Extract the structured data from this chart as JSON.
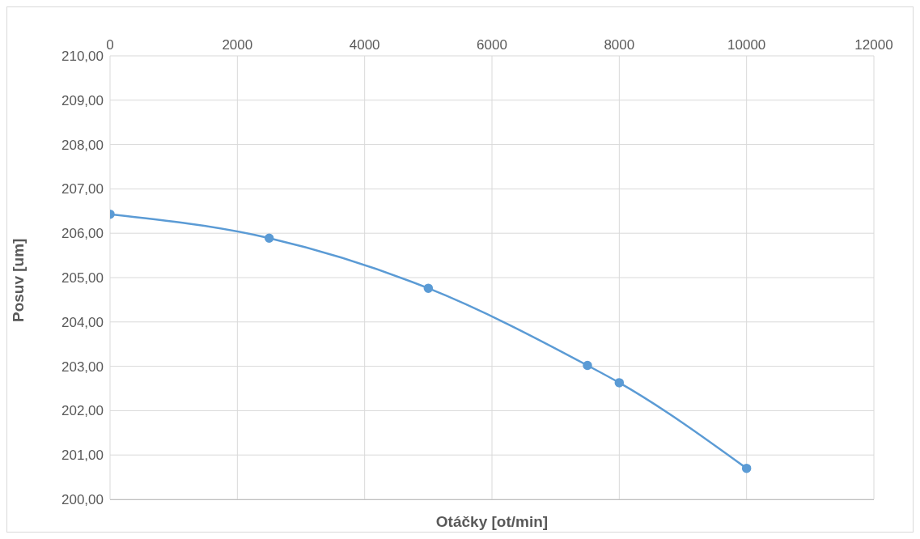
{
  "chart_data": {
    "type": "line",
    "xlabel": "Otáčky [ot/min]",
    "ylabel": "Posuv [um]",
    "x": [
      0,
      2500,
      5000,
      7500,
      8000,
      10000
    ],
    "series": [
      {
        "color": "#5b9bd5",
        "values": [
          206.43,
          205.89,
          204.76,
          203.02,
          202.63,
          200.7
        ]
      }
    ],
    "xlim": [
      0,
      12000
    ],
    "xticks": [
      0,
      2000,
      4000,
      6000,
      8000,
      10000,
      12000
    ],
    "ylim": [
      200,
      210
    ],
    "yticks": [
      {
        "value": 200,
        "label": "200,00"
      },
      {
        "value": 201,
        "label": "201,00"
      },
      {
        "value": 202,
        "label": "202,00"
      },
      {
        "value": 203,
        "label": "203,00"
      },
      {
        "value": 204,
        "label": "204,00"
      },
      {
        "value": 205,
        "label": "205,00"
      },
      {
        "value": 206,
        "label": "206,00"
      },
      {
        "value": 207,
        "label": "207,00"
      },
      {
        "value": 208,
        "label": "208,00"
      },
      {
        "value": 209,
        "label": "209,00"
      },
      {
        "value": 210,
        "label": "210,00"
      }
    ],
    "grid": true,
    "marker": "circle",
    "line_style": "solid",
    "legend": false
  }
}
